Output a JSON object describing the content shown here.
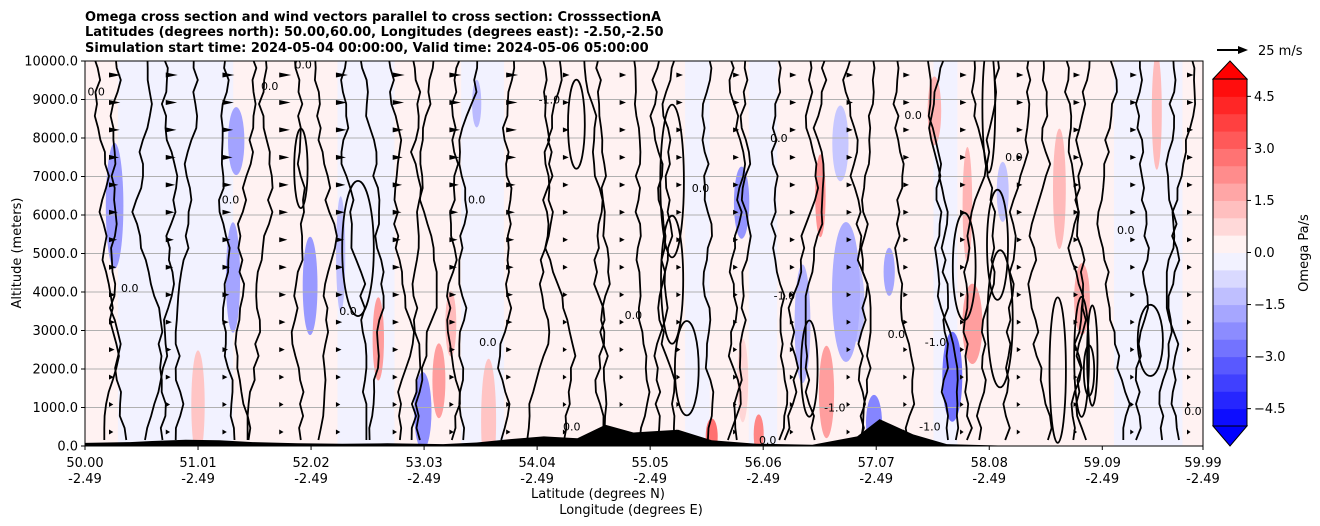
{
  "chart_data": {
    "type": "contour",
    "title_lines": [
      "Omega cross section and wind vectors parallel to cross section: CrosssectionA",
      "Latitudes (degrees north): 50.00,60.00, Longitudes (degrees east): -2.50,-2.50",
      "Simulation start time: 2024-05-04 00:00:00, Valid time: 2024-05-06 05:00:00"
    ],
    "ylabel": "Altitude (meters)",
    "xlabel_1": "Latitude (degrees N)",
    "xlabel_2": "Longitude (degrees E)",
    "ylim": [
      0,
      10000
    ],
    "xlim": [
      50.0,
      59.99
    ],
    "grid": "horizontal",
    "y_ticks": [
      {
        "value": 0,
        "label": "0.0"
      },
      {
        "value": 1000,
        "label": "1000.0"
      },
      {
        "value": 2000,
        "label": "2000.0"
      },
      {
        "value": 3000,
        "label": "3000.0"
      },
      {
        "value": 4000,
        "label": "4000.0"
      },
      {
        "value": 5000,
        "label": "5000.0"
      },
      {
        "value": 6000,
        "label": "6000.0"
      },
      {
        "value": 7000,
        "label": "7000.0"
      },
      {
        "value": 8000,
        "label": "8000.0"
      },
      {
        "value": 9000,
        "label": "9000.0"
      },
      {
        "value": 10000,
        "label": "10000.0"
      }
    ],
    "x_ticks": [
      {
        "value": 50.0,
        "lat": "50.00",
        "lon": "-2.49"
      },
      {
        "value": 51.01,
        "lat": "51.01",
        "lon": "-2.49"
      },
      {
        "value": 52.02,
        "lat": "52.02",
        "lon": "-2.49"
      },
      {
        "value": 53.03,
        "lat": "53.03",
        "lon": "-2.49"
      },
      {
        "value": 54.04,
        "lat": "54.04",
        "lon": "-2.49"
      },
      {
        "value": 55.05,
        "lat": "55.05",
        "lon": "-2.49"
      },
      {
        "value": 56.06,
        "lat": "56.06",
        "lon": "-2.49"
      },
      {
        "value": 57.07,
        "lat": "57.07",
        "lon": "-2.49"
      },
      {
        "value": 58.08,
        "lat": "58.08",
        "lon": "-2.49"
      },
      {
        "value": 59.09,
        "lat": "59.09",
        "lon": "-2.49"
      },
      {
        "value": 59.99,
        "lat": "59.99",
        "lon": "-2.49"
      }
    ],
    "colorbar": {
      "label": "Omega Pa/s",
      "range": [
        -5.0,
        5.0
      ],
      "extend": "both",
      "tick_values": [
        4.5,
        3.0,
        1.5,
        0.0,
        -1.5,
        -3.0,
        -4.5
      ],
      "tick_labels": [
        "4.5",
        "3.0",
        "1.5",
        "0.0",
        "−1.5",
        "−3.0",
        "−4.5"
      ],
      "over_color": "#ff0000",
      "under_color": "#0000ff"
    },
    "quiver_key": {
      "label": "25 m/s",
      "value": 25
    },
    "terrain": [
      {
        "lat": 50.0,
        "alt": 80
      },
      {
        "lat": 50.4,
        "alt": 100
      },
      {
        "lat": 50.6,
        "alt": 130
      },
      {
        "lat": 50.9,
        "alt": 160
      },
      {
        "lat": 51.2,
        "alt": 150
      },
      {
        "lat": 51.5,
        "alt": 100
      },
      {
        "lat": 51.9,
        "alt": 70
      },
      {
        "lat": 52.3,
        "alt": 60
      },
      {
        "lat": 52.7,
        "alt": 70
      },
      {
        "lat": 53.2,
        "alt": 50
      },
      {
        "lat": 53.5,
        "alt": 90
      },
      {
        "lat": 53.8,
        "alt": 180
      },
      {
        "lat": 54.1,
        "alt": 250
      },
      {
        "lat": 54.4,
        "alt": 200
      },
      {
        "lat": 54.65,
        "alt": 550
      },
      {
        "lat": 54.9,
        "alt": 350
      },
      {
        "lat": 55.3,
        "alt": 420
      },
      {
        "lat": 55.6,
        "alt": 150
      },
      {
        "lat": 56.0,
        "alt": 60
      },
      {
        "lat": 56.5,
        "alt": 30
      },
      {
        "lat": 56.9,
        "alt": 250
      },
      {
        "lat": 57.1,
        "alt": 700
      },
      {
        "lat": 57.4,
        "alt": 300
      },
      {
        "lat": 57.7,
        "alt": 50
      },
      {
        "lat": 58.2,
        "alt": 10
      },
      {
        "lat": 59.99,
        "alt": 0
      }
    ],
    "contour_labels": [
      {
        "text": "0.0",
        "lat": 51.95,
        "alt": 9800
      },
      {
        "text": "0.0",
        "lat": 51.65,
        "alt": 9250
      },
      {
        "text": "0.0",
        "lat": 50.1,
        "alt": 9100
      },
      {
        "text": "-1.0",
        "lat": 54.15,
        "alt": 8900
      },
      {
        "text": "0.0",
        "lat": 51.3,
        "alt": 6300
      },
      {
        "text": "0.0",
        "lat": 53.5,
        "alt": 6300
      },
      {
        "text": "0.0",
        "lat": 55.5,
        "alt": 6600
      },
      {
        "text": "0.0",
        "lat": 56.2,
        "alt": 7900
      },
      {
        "text": "0.0",
        "lat": 57.4,
        "alt": 8500
      },
      {
        "text": "0.0",
        "lat": 58.3,
        "alt": 7400
      },
      {
        "text": "0.0",
        "lat": 59.3,
        "alt": 5500
      },
      {
        "text": "0.0",
        "lat": 50.4,
        "alt": 4000
      },
      {
        "text": "0.0",
        "lat": 52.35,
        "alt": 3400
      },
      {
        "text": "0.0",
        "lat": 53.6,
        "alt": 2600
      },
      {
        "text": "0.0",
        "lat": 54.9,
        "alt": 3300
      },
      {
        "text": "-1.0",
        "lat": 56.25,
        "alt": 3800
      },
      {
        "text": "0.0",
        "lat": 57.25,
        "alt": 2800
      },
      {
        "text": "-1.0",
        "lat": 57.6,
        "alt": 2600
      },
      {
        "text": "-1.0",
        "lat": 56.7,
        "alt": 900
      },
      {
        "text": "0.0",
        "lat": 56.1,
        "alt": 50
      },
      {
        "text": "0.0",
        "lat": 54.35,
        "alt": 400
      },
      {
        "text": "-1.0",
        "lat": 57.55,
        "alt": 400
      },
      {
        "text": "0.0",
        "lat": 59.9,
        "alt": 800
      }
    ]
  }
}
